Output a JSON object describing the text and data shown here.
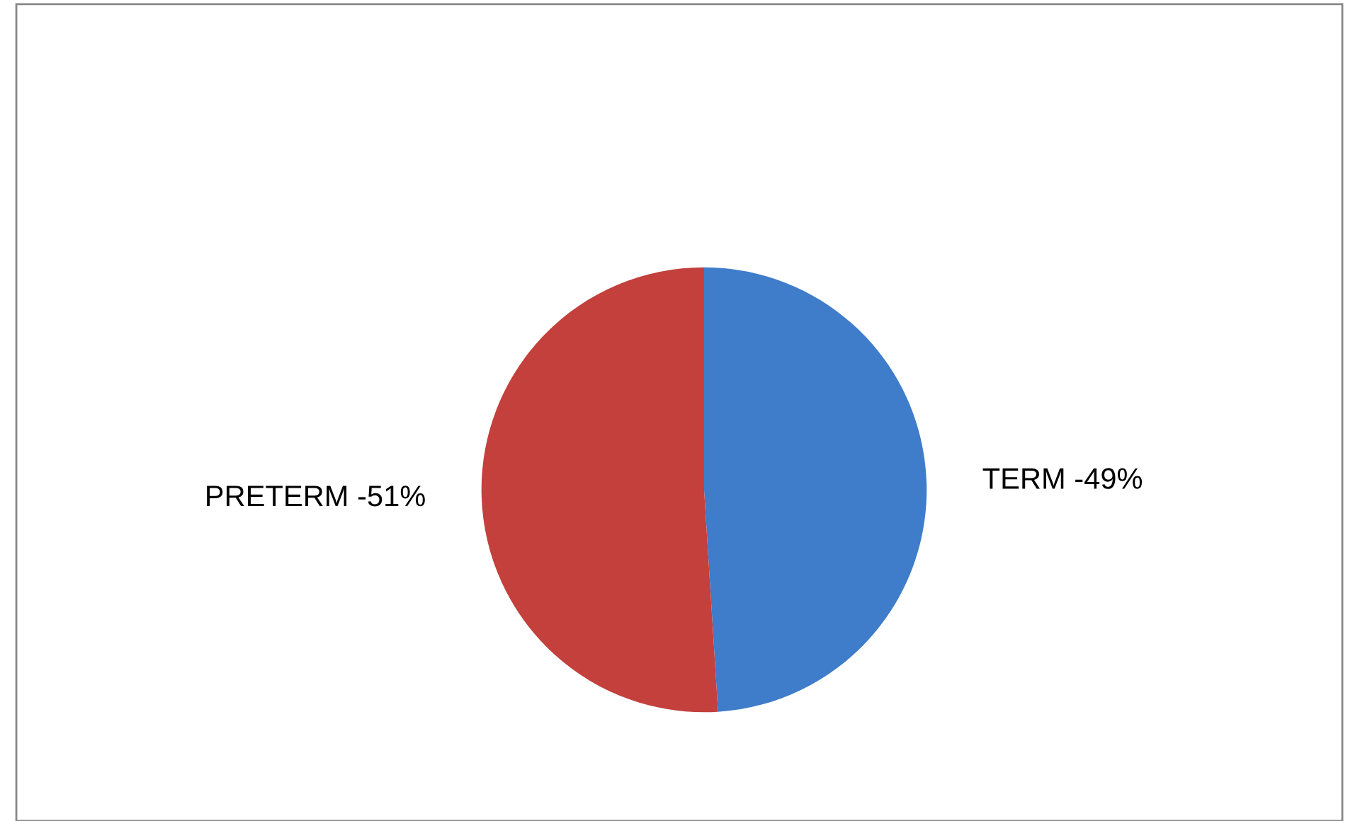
{
  "chart_data": {
    "type": "pie",
    "categories": [
      "TERM -49%",
      "PRETERM -51%"
    ],
    "values": [
      49,
      51
    ],
    "colors": [
      "#3f7cc9",
      "#c3403c"
    ],
    "legend": false
  }
}
